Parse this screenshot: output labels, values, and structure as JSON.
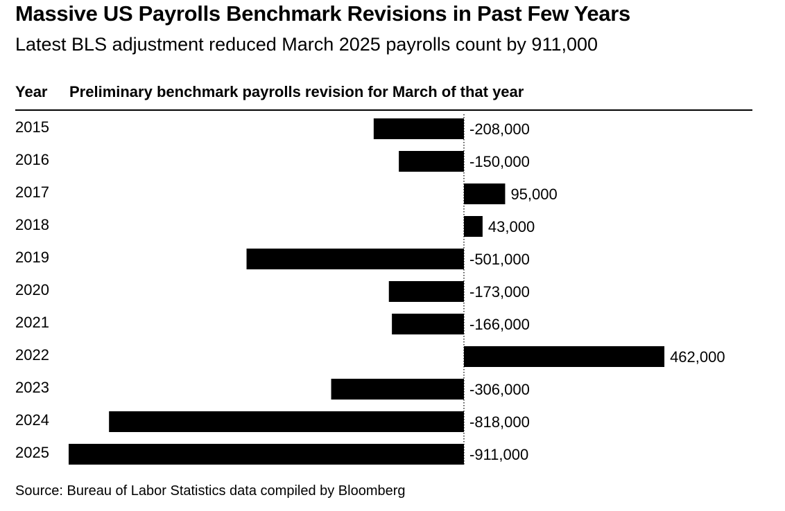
{
  "title": "Massive US Payrolls Benchmark Revisions in Past Few Years",
  "subtitle": "Latest BLS adjustment reduced March 2025 payrolls count by 911,000",
  "columns": {
    "year": "Year",
    "value": "Preliminary benchmark payrolls revision for March of that year"
  },
  "source": "Source: Bureau of Labor Statistics data compiled by Bloomberg",
  "chart_data": {
    "type": "bar",
    "orientation": "horizontal",
    "categories": [
      "2015",
      "2016",
      "2017",
      "2018",
      "2019",
      "2020",
      "2021",
      "2022",
      "2023",
      "2024",
      "2025"
    ],
    "values": [
      -208000,
      -150000,
      95000,
      43000,
      -501000,
      -173000,
      -166000,
      462000,
      -306000,
      -818000,
      -911000
    ],
    "labels": [
      "-208,000",
      "-150,000",
      "95,000",
      "43,000",
      "-501,000",
      "-173,000",
      "-166,000",
      "462,000",
      "-306,000",
      "-818,000",
      "-911,000"
    ],
    "bar_color": "#000000",
    "zero_line": "dotted",
    "legend": "none",
    "grid": false
  }
}
